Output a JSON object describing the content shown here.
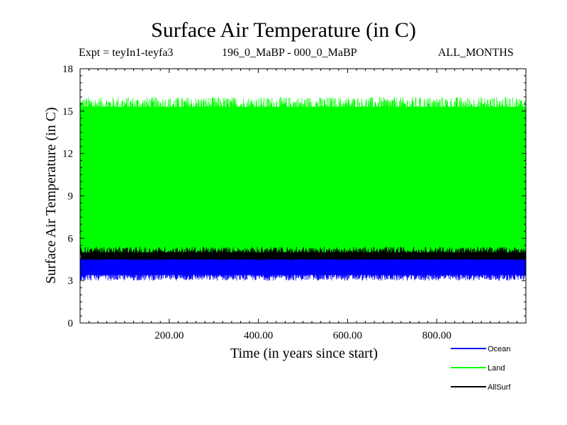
{
  "chart_data": {
    "type": "line",
    "title": "Surface Air Temperature (in C)",
    "subtitle_left": "Expt = teyIn1-teyfa3",
    "subtitle_center": "196_0_MaBP - 000_0_MaBP",
    "subtitle_right": "ALL_MONTHS",
    "xlabel": "Time (in years since start)",
    "ylabel": "Surface Air Temperature (in C)",
    "xlim": [
      0,
      1000
    ],
    "ylim": [
      0,
      18
    ],
    "xticks": [
      200,
      400,
      600,
      800
    ],
    "xtick_labels": [
      "200.00",
      "400.00",
      "600.00",
      "800.00"
    ],
    "yticks": [
      0,
      3,
      6,
      9,
      12,
      15,
      18
    ],
    "ytick_labels": [
      "0",
      "3",
      "6",
      "9",
      "12",
      "15",
      "18"
    ],
    "series": [
      {
        "name": "Ocean",
        "color": "#0000ff",
        "lower_range": [
          3.0,
          3.5
        ],
        "upper_range": [
          4.4,
          5.0
        ],
        "seasonal_band": [
          3.4,
          4.6
        ]
      },
      {
        "name": "Land",
        "color": "#00ff00",
        "lower_range": [
          4.6,
          5.2
        ],
        "upper_range": [
          14.9,
          16.0
        ],
        "seasonal_band": [
          4.9,
          15.3
        ]
      },
      {
        "name": "AllSurf",
        "color": "#000000",
        "lower_range": [
          4.4,
          5.2
        ],
        "upper_range": [
          4.6,
          5.4
        ],
        "seasonal_band": [
          4.5,
          5.0
        ]
      }
    ],
    "legend_position": "bottom-right"
  }
}
